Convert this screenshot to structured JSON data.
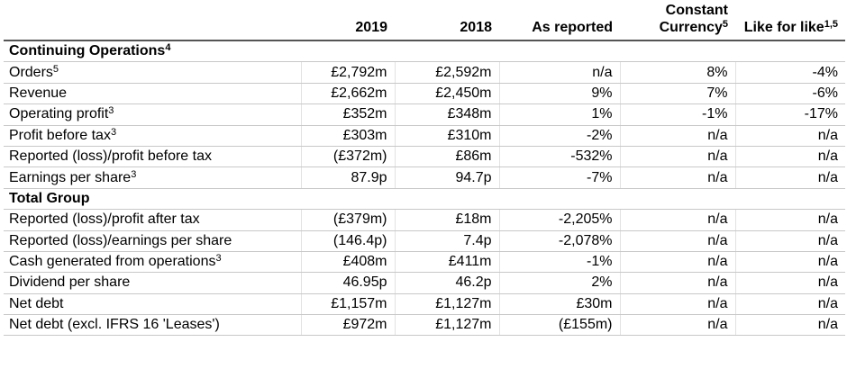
{
  "table": {
    "columns": [
      {
        "text": "2019"
      },
      {
        "text": "2018"
      },
      {
        "text": "As reported"
      },
      {
        "text": "Constant Currency",
        "sup": "5"
      },
      {
        "text": "Like for like",
        "sup": "1,5"
      }
    ],
    "sections": [
      {
        "title": "Continuing Operations",
        "sup": "4",
        "rows": [
          {
            "label": "Orders",
            "sup": "5",
            "cells": [
              "£2,792m",
              "£2,592m",
              "n/a",
              "8%",
              "-4%"
            ]
          },
          {
            "label": "Revenue",
            "cells": [
              "£2,662m",
              "£2,450m",
              "9%",
              "7%",
              "-6%"
            ]
          },
          {
            "label": "Operating profit",
            "sup": "3",
            "cells": [
              "£352m",
              "£348m",
              "1%",
              "-1%",
              "-17%"
            ]
          },
          {
            "label": "Profit before tax",
            "sup": "3",
            "cells": [
              "£303m",
              "£310m",
              "-2%",
              "n/a",
              "n/a"
            ]
          },
          {
            "label": "Reported (loss)/profit before tax",
            "cells": [
              "(£372m)",
              "£86m",
              "-532%",
              "n/a",
              "n/a"
            ]
          },
          {
            "label": "Earnings per share",
            "sup": "3",
            "cells": [
              "87.9p",
              "94.7p",
              "-7%",
              "n/a",
              "n/a"
            ]
          }
        ]
      },
      {
        "title": "Total Group",
        "rows": [
          {
            "label": "Reported (loss)/profit after tax",
            "cells": [
              "(£379m)",
              "£18m",
              "-2,205%",
              "n/a",
              "n/a"
            ]
          },
          {
            "label": "Reported (loss)/earnings per share",
            "cells": [
              "(146.4p)",
              "7.4p",
              "-2,078%",
              "n/a",
              "n/a"
            ]
          },
          {
            "label": "Cash generated from operations",
            "sup": "3",
            "cells": [
              "£408m",
              "£411m",
              "-1%",
              "n/a",
              "n/a"
            ]
          },
          {
            "label": "Dividend per share",
            "cells": [
              "46.95p",
              "46.2p",
              "2%",
              "n/a",
              "n/a"
            ]
          },
          {
            "label": "Net debt",
            "cells": [
              "£1,157m",
              "£1,127m",
              "£30m",
              "n/a",
              "n/a"
            ]
          },
          {
            "label": "Net debt (excl. IFRS 16 'Leases')",
            "cells": [
              "£972m",
              "£1,127m",
              "(£155m)",
              "n/a",
              "n/a"
            ]
          }
        ]
      }
    ]
  }
}
